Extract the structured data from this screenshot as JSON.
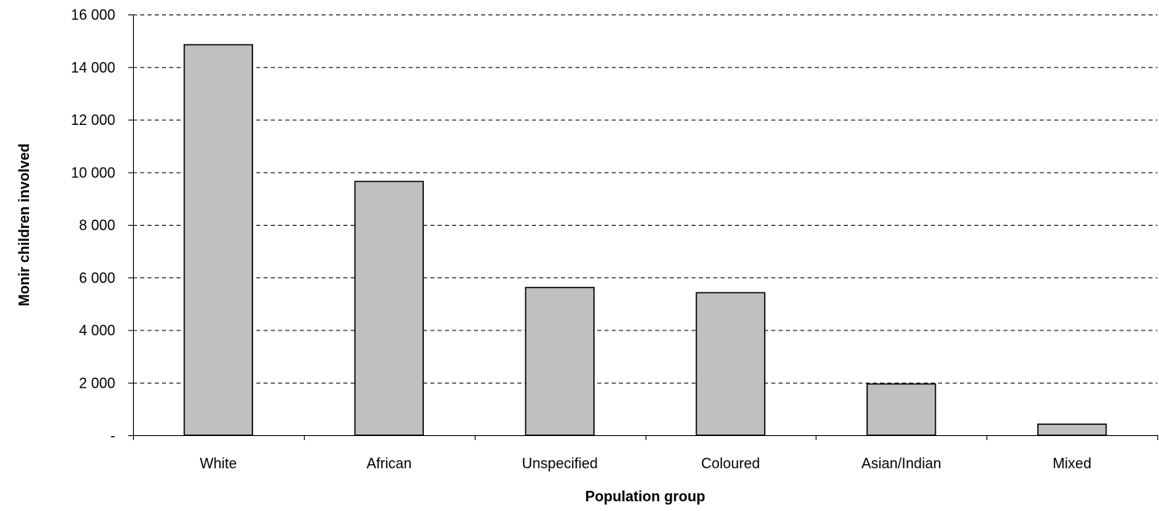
{
  "chart_data": {
    "type": "bar",
    "title": "",
    "xlabel": "Population group",
    "ylabel": "Monir children involved",
    "categories": [
      "White",
      "African",
      "Unspecified",
      "Coloured",
      "Asian/Indian",
      "Mixed"
    ],
    "values": [
      14850,
      9650,
      5620,
      5420,
      1950,
      420
    ],
    "ylim": [
      0,
      16000
    ],
    "yticks": [
      0,
      2000,
      4000,
      6000,
      8000,
      10000,
      12000,
      14000,
      16000
    ],
    "ytick_labels": [
      "-",
      "2 000",
      "4 000",
      "6 000",
      "8 000",
      "10 000",
      "12 000",
      "14 000",
      "16 000"
    ],
    "grid": "horizontal dashed",
    "legend": "none",
    "bar_color": "#c0c0c0",
    "bar_edge_color": "#000000"
  }
}
